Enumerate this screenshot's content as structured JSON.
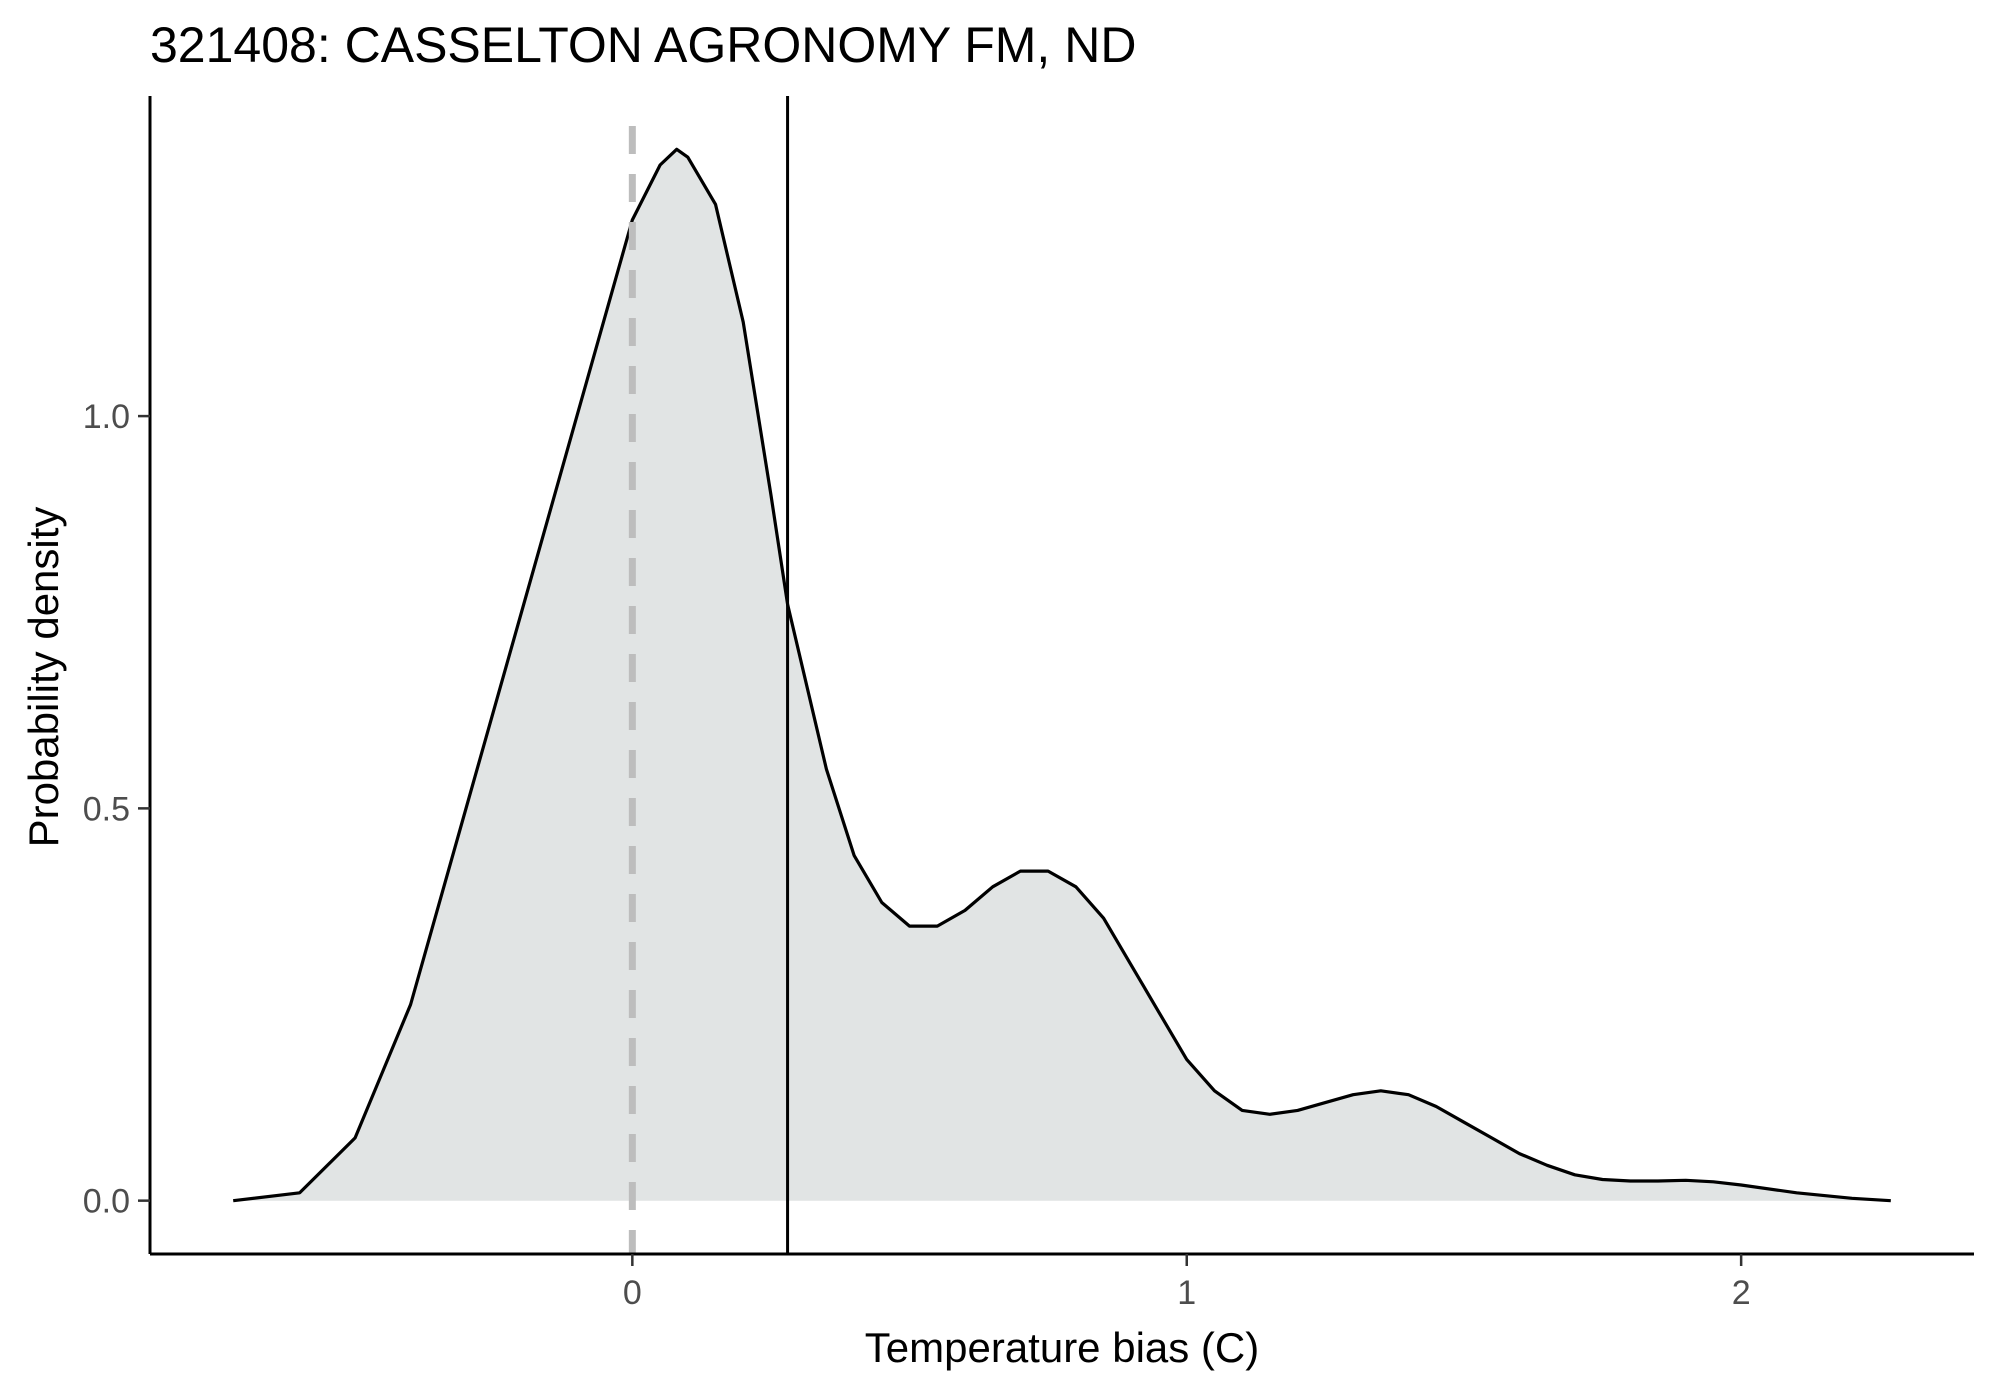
{
  "chart_data": {
    "type": "area",
    "title": "321408: CASSELTON AGRONOMY FM, ND",
    "xlabel": "Temperature bias (C)",
    "ylabel": "Probability density",
    "xlim": [
      -0.87,
      2.42
    ],
    "ylim": [
      -0.068,
      1.408
    ],
    "x_ticks": [
      {
        "value": 0,
        "label": "0"
      },
      {
        "value": 1,
        "label": "1"
      },
      {
        "value": 2,
        "label": "2"
      }
    ],
    "y_ticks": [
      {
        "value": 0.0,
        "label": "0.0"
      },
      {
        "value": 0.5,
        "label": "0.5"
      },
      {
        "value": 1.0,
        "label": "1.0"
      }
    ],
    "grid": false,
    "legend": "none",
    "colors": {
      "fill": "#e1e4e4",
      "curve": "#000000",
      "zero_line": "#bdbdbd",
      "mean_line": "#000000",
      "axis": "#000000",
      "tick_label": "#4d4d4d"
    },
    "series": [
      {
        "x": [
          -0.72,
          -0.6,
          -0.5,
          -0.4,
          -0.3,
          -0.2,
          -0.1,
          0.0,
          0.05,
          0.08,
          0.1,
          0.15,
          0.2,
          0.25,
          0.28,
          0.3,
          0.35,
          0.4,
          0.45,
          0.5,
          0.55,
          0.6,
          0.65,
          0.7,
          0.75,
          0.8,
          0.85,
          0.9,
          0.95,
          1.0,
          1.05,
          1.1,
          1.15,
          1.2,
          1.25,
          1.3,
          1.35,
          1.4,
          1.45,
          1.5,
          1.55,
          1.6,
          1.65,
          1.7,
          1.75,
          1.8,
          1.85,
          1.9,
          1.95,
          2.0,
          2.1,
          2.2,
          2.27
        ],
        "y": [
          0.0,
          0.01,
          0.08,
          0.25,
          0.5,
          0.75,
          1.0,
          1.25,
          1.32,
          1.34,
          1.33,
          1.27,
          1.12,
          0.9,
          0.76,
          0.7,
          0.55,
          0.44,
          0.38,
          0.35,
          0.35,
          0.37,
          0.4,
          0.42,
          0.42,
          0.4,
          0.36,
          0.3,
          0.24,
          0.18,
          0.14,
          0.115,
          0.11,
          0.115,
          0.125,
          0.135,
          0.14,
          0.135,
          0.12,
          0.1,
          0.08,
          0.06,
          0.045,
          0.033,
          0.027,
          0.025,
          0.025,
          0.026,
          0.024,
          0.02,
          0.01,
          0.003,
          0.0
        ]
      }
    ],
    "reference_lines": [
      {
        "x": 0,
        "style": "dashed"
      },
      {
        "x": 0.28,
        "style": "solid"
      }
    ]
  }
}
